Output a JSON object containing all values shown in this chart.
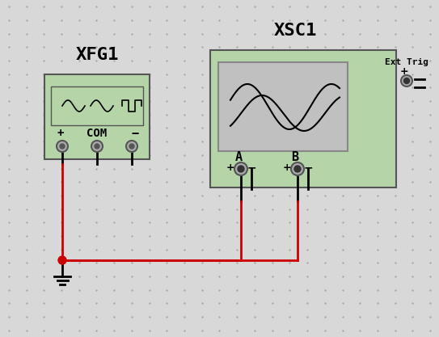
{
  "bg_color": "#d8d8d8",
  "dot_color": "#aaaaaa",
  "green_fill": "#b5d5a8",
  "green_border": "#555555",
  "gray_fill": "#aaaaaa",
  "screen_fill": "#c0c0c0",
  "red_wire": "#cc0000",
  "black_wire": "#000000",
  "title_xfg1": "XFG1",
  "title_xsc1": "XSC1",
  "title_ext_trig": "Ext Trig",
  "label_a": "A",
  "label_b": "B",
  "label_com": "COM",
  "label_plus": "+",
  "label_minus": "−",
  "font_size_title": 16,
  "font_size_label": 10,
  "font_size_small": 8,
  "fig_width": 5.43,
  "fig_height": 4.17,
  "dpi": 100
}
